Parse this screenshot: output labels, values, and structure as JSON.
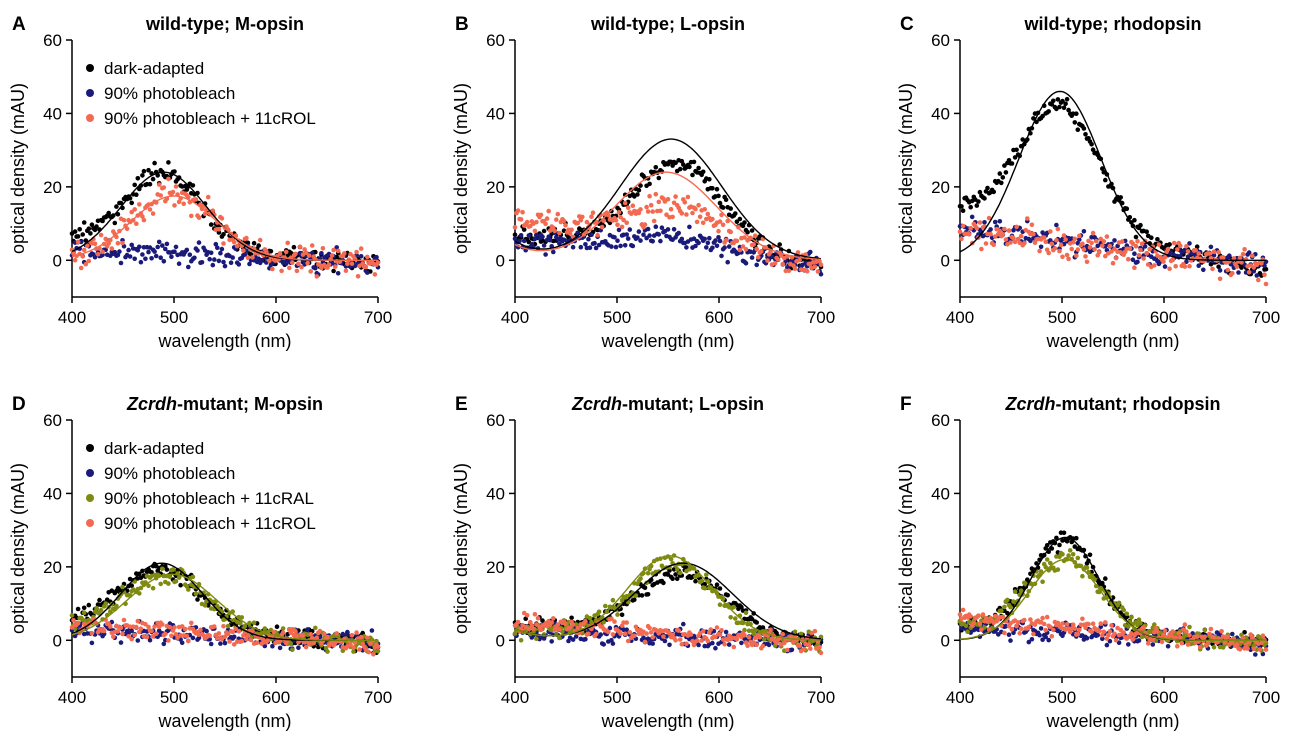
{
  "colors": {
    "dark-adapted": "#000000",
    "photobleach": "#1a1a7a",
    "11cRAL": "#7f8a10",
    "11cROL": "#f46a50"
  },
  "chart_data": [
    {
      "panel": "A",
      "title": "wild-type; M-opsin",
      "title_prefix_italic": "",
      "type": "scatter",
      "xlabel": "wavelength (nm)",
      "ylabel": "optical density (mAU)",
      "xlim": [
        400,
        700
      ],
      "ylim": [
        -10,
        60
      ],
      "xticks": [
        400,
        500,
        600,
        700
      ],
      "yticks": [
        0,
        20,
        40,
        60
      ],
      "legend": [
        "dark-adapted",
        "90% photobleach",
        "90% photobleach + 11cROL"
      ],
      "series": [
        {
          "name": "dark-adapted",
          "colorKey": "dark-adapted",
          "base": 6,
          "amp": 20,
          "peak": 490,
          "sigma": 36,
          "noise": 1.6
        },
        {
          "name": "90% photobleach",
          "colorKey": "photobleach",
          "base": 3,
          "amp": 0,
          "peak": 500,
          "sigma": 40,
          "noise": 2.0
        },
        {
          "name": "90% photobleach + 11cROL",
          "colorKey": "11cROL",
          "base": 1,
          "amp": 18,
          "peak": 500,
          "sigma": 38,
          "noise": 2.4
        }
      ],
      "fits": [
        {
          "colorKey": "dark-adapted",
          "amp": 24,
          "peak": 490,
          "sigma": 42
        },
        {
          "colorKey": "11cROL",
          "amp": 17.5,
          "peak": 500,
          "sigma": 42
        }
      ]
    },
    {
      "panel": "B",
      "title": "wild-type; L-opsin",
      "title_prefix_italic": "",
      "type": "scatter",
      "xlabel": "wavelength (nm)",
      "ylabel": "optical density (mAU)",
      "xlim": [
        400,
        700
      ],
      "ylim": [
        -10,
        60
      ],
      "xticks": [
        400,
        500,
        600,
        700
      ],
      "yticks": [
        0,
        20,
        40,
        60
      ],
      "legend": [],
      "series": [
        {
          "name": "dark-adapted",
          "colorKey": "dark-adapted",
          "base": 7,
          "amp": 24,
          "peak": 560,
          "sigma": 45,
          "noise": 1.6
        },
        {
          "name": "90% photobleach",
          "colorKey": "photobleach",
          "base": 5,
          "amp": 5,
          "peak": 545,
          "sigma": 50,
          "noise": 1.8
        },
        {
          "name": "90% photobleach + 11cROL",
          "colorKey": "11cROL",
          "base": 12,
          "amp": 10,
          "peak": 560,
          "sigma": 45,
          "noise": 2.2
        }
      ],
      "fits": [
        {
          "colorKey": "dark-adapted",
          "amp": 33,
          "peak": 553,
          "sigma": 50,
          "tail": 5
        },
        {
          "colorKey": "11cROL",
          "amp": 24,
          "peak": 548,
          "sigma": 50,
          "tail": 4
        }
      ]
    },
    {
      "panel": "C",
      "title": "wild-type; rhodopsin",
      "title_prefix_italic": "",
      "type": "scatter",
      "xlabel": "wavelength (nm)",
      "ylabel": "optical density (mAU)",
      "xlim": [
        400,
        700
      ],
      "ylim": [
        -10,
        60
      ],
      "xticks": [
        400,
        500,
        600,
        700
      ],
      "yticks": [
        0,
        20,
        40,
        60
      ],
      "legend": [],
      "series": [
        {
          "name": "dark-adapted",
          "colorKey": "dark-adapted",
          "base": 14,
          "amp": 34,
          "peak": 498,
          "sigma": 38,
          "noise": 1.3
        },
        {
          "name": "90% photobleach",
          "colorKey": "photobleach",
          "base": 9,
          "amp": 0,
          "peak": 500,
          "sigma": 40,
          "noise": 2.0
        },
        {
          "name": "90% photobleach + 11cROL",
          "colorKey": "11cROL",
          "base": 8,
          "amp": 0,
          "peak": 500,
          "sigma": 40,
          "noise": 2.4
        }
      ],
      "fits": [
        {
          "colorKey": "dark-adapted",
          "amp": 46,
          "peak": 498,
          "sigma": 40
        }
      ]
    },
    {
      "panel": "D",
      "title": "-mutant; M-opsin",
      "title_prefix_italic": "Zcrdh",
      "type": "scatter",
      "xlabel": "wavelength (nm)",
      "ylabel": "optical density (mAU)",
      "xlim": [
        400,
        700
      ],
      "ylim": [
        -10,
        60
      ],
      "xticks": [
        400,
        500,
        600,
        700
      ],
      "yticks": [
        0,
        20,
        40,
        60
      ],
      "legend": [
        "dark-adapted",
        "90% photobleach",
        "90% photobleach + 11cRAL",
        "90% photobleach + 11cROL"
      ],
      "series": [
        {
          "name": "dark-adapted",
          "colorKey": "dark-adapted",
          "base": 5,
          "amp": 16,
          "peak": 488,
          "sigma": 40,
          "noise": 1.4
        },
        {
          "name": "90% photobleach",
          "colorKey": "photobleach",
          "base": 3,
          "amp": 0,
          "peak": 500,
          "sigma": 40,
          "noise": 1.6
        },
        {
          "name": "90% photobleach + 11cRAL",
          "colorKey": "11cRAL",
          "base": 4,
          "amp": 15,
          "peak": 495,
          "sigma": 40,
          "noise": 1.6
        },
        {
          "name": "90% photobleach + 11cROL",
          "colorKey": "11cROL",
          "base": 4,
          "amp": 0,
          "peak": 500,
          "sigma": 40,
          "noise": 1.6
        }
      ],
      "fits": [
        {
          "colorKey": "dark-adapted",
          "amp": 21,
          "peak": 488,
          "sigma": 40
        },
        {
          "colorKey": "11cRAL",
          "amp": 18,
          "peak": 498,
          "sigma": 44
        }
      ]
    },
    {
      "panel": "E",
      "title": "-mutant; L-opsin",
      "title_prefix_italic": "Zcrdh",
      "type": "scatter",
      "xlabel": "wavelength (nm)",
      "ylabel": "optical density (mAU)",
      "xlim": [
        400,
        700
      ],
      "ylim": [
        -10,
        60
      ],
      "xticks": [
        400,
        500,
        600,
        700
      ],
      "yticks": [
        0,
        20,
        40,
        60
      ],
      "legend": [],
      "series": [
        {
          "name": "dark-adapted",
          "colorKey": "dark-adapted",
          "base": 4,
          "amp": 17,
          "peak": 565,
          "sigma": 45,
          "noise": 1.4
        },
        {
          "name": "90% photobleach",
          "colorKey": "photobleach",
          "base": 2.5,
          "amp": 0,
          "peak": 540,
          "sigma": 50,
          "noise": 1.6
        },
        {
          "name": "90% photobleach + 11cRAL",
          "colorKey": "11cRAL",
          "base": 3,
          "amp": 20,
          "peak": 555,
          "sigma": 40,
          "noise": 1.6
        },
        {
          "name": "90% photobleach + 11cROL",
          "colorKey": "11cROL",
          "base": 5,
          "amp": 0,
          "peak": 540,
          "sigma": 50,
          "noise": 1.6
        }
      ],
      "fits": [
        {
          "colorKey": "dark-adapted",
          "amp": 21,
          "peak": 565,
          "sigma": 48,
          "tail": 3
        },
        {
          "colorKey": "11cRAL",
          "amp": 23,
          "peak": 552,
          "sigma": 42,
          "tail": 3
        }
      ]
    },
    {
      "panel": "F",
      "title": "-mutant; rhodopsin",
      "title_prefix_italic": "Zcrdh",
      "type": "scatter",
      "xlabel": "wavelength (nm)",
      "ylabel": "optical density (mAU)",
      "xlim": [
        400,
        700
      ],
      "ylim": [
        -10,
        60
      ],
      "xticks": [
        400,
        500,
        600,
        700
      ],
      "yticks": [
        0,
        20,
        40,
        60
      ],
      "legend": [],
      "series": [
        {
          "name": "dark-adapted",
          "colorKey": "dark-adapted",
          "base": 4,
          "amp": 25,
          "peak": 503,
          "sigma": 33,
          "noise": 1.3
        },
        {
          "name": "90% photobleach",
          "colorKey": "photobleach",
          "base": 4,
          "amp": 0,
          "peak": 500,
          "sigma": 40,
          "noise": 1.6
        },
        {
          "name": "90% photobleach + 11cRAL",
          "colorKey": "11cRAL",
          "base": 4,
          "amp": 20,
          "peak": 503,
          "sigma": 35,
          "noise": 1.6
        },
        {
          "name": "90% photobleach + 11cROL",
          "colorKey": "11cROL",
          "base": 6,
          "amp": 0,
          "peak": 500,
          "sigma": 40,
          "noise": 1.6
        }
      ],
      "fits": [
        {
          "colorKey": "dark-adapted",
          "amp": 28,
          "peak": 503,
          "sigma": 33
        },
        {
          "colorKey": "11cRAL",
          "amp": 22,
          "peak": 503,
          "sigma": 35
        }
      ]
    }
  ]
}
